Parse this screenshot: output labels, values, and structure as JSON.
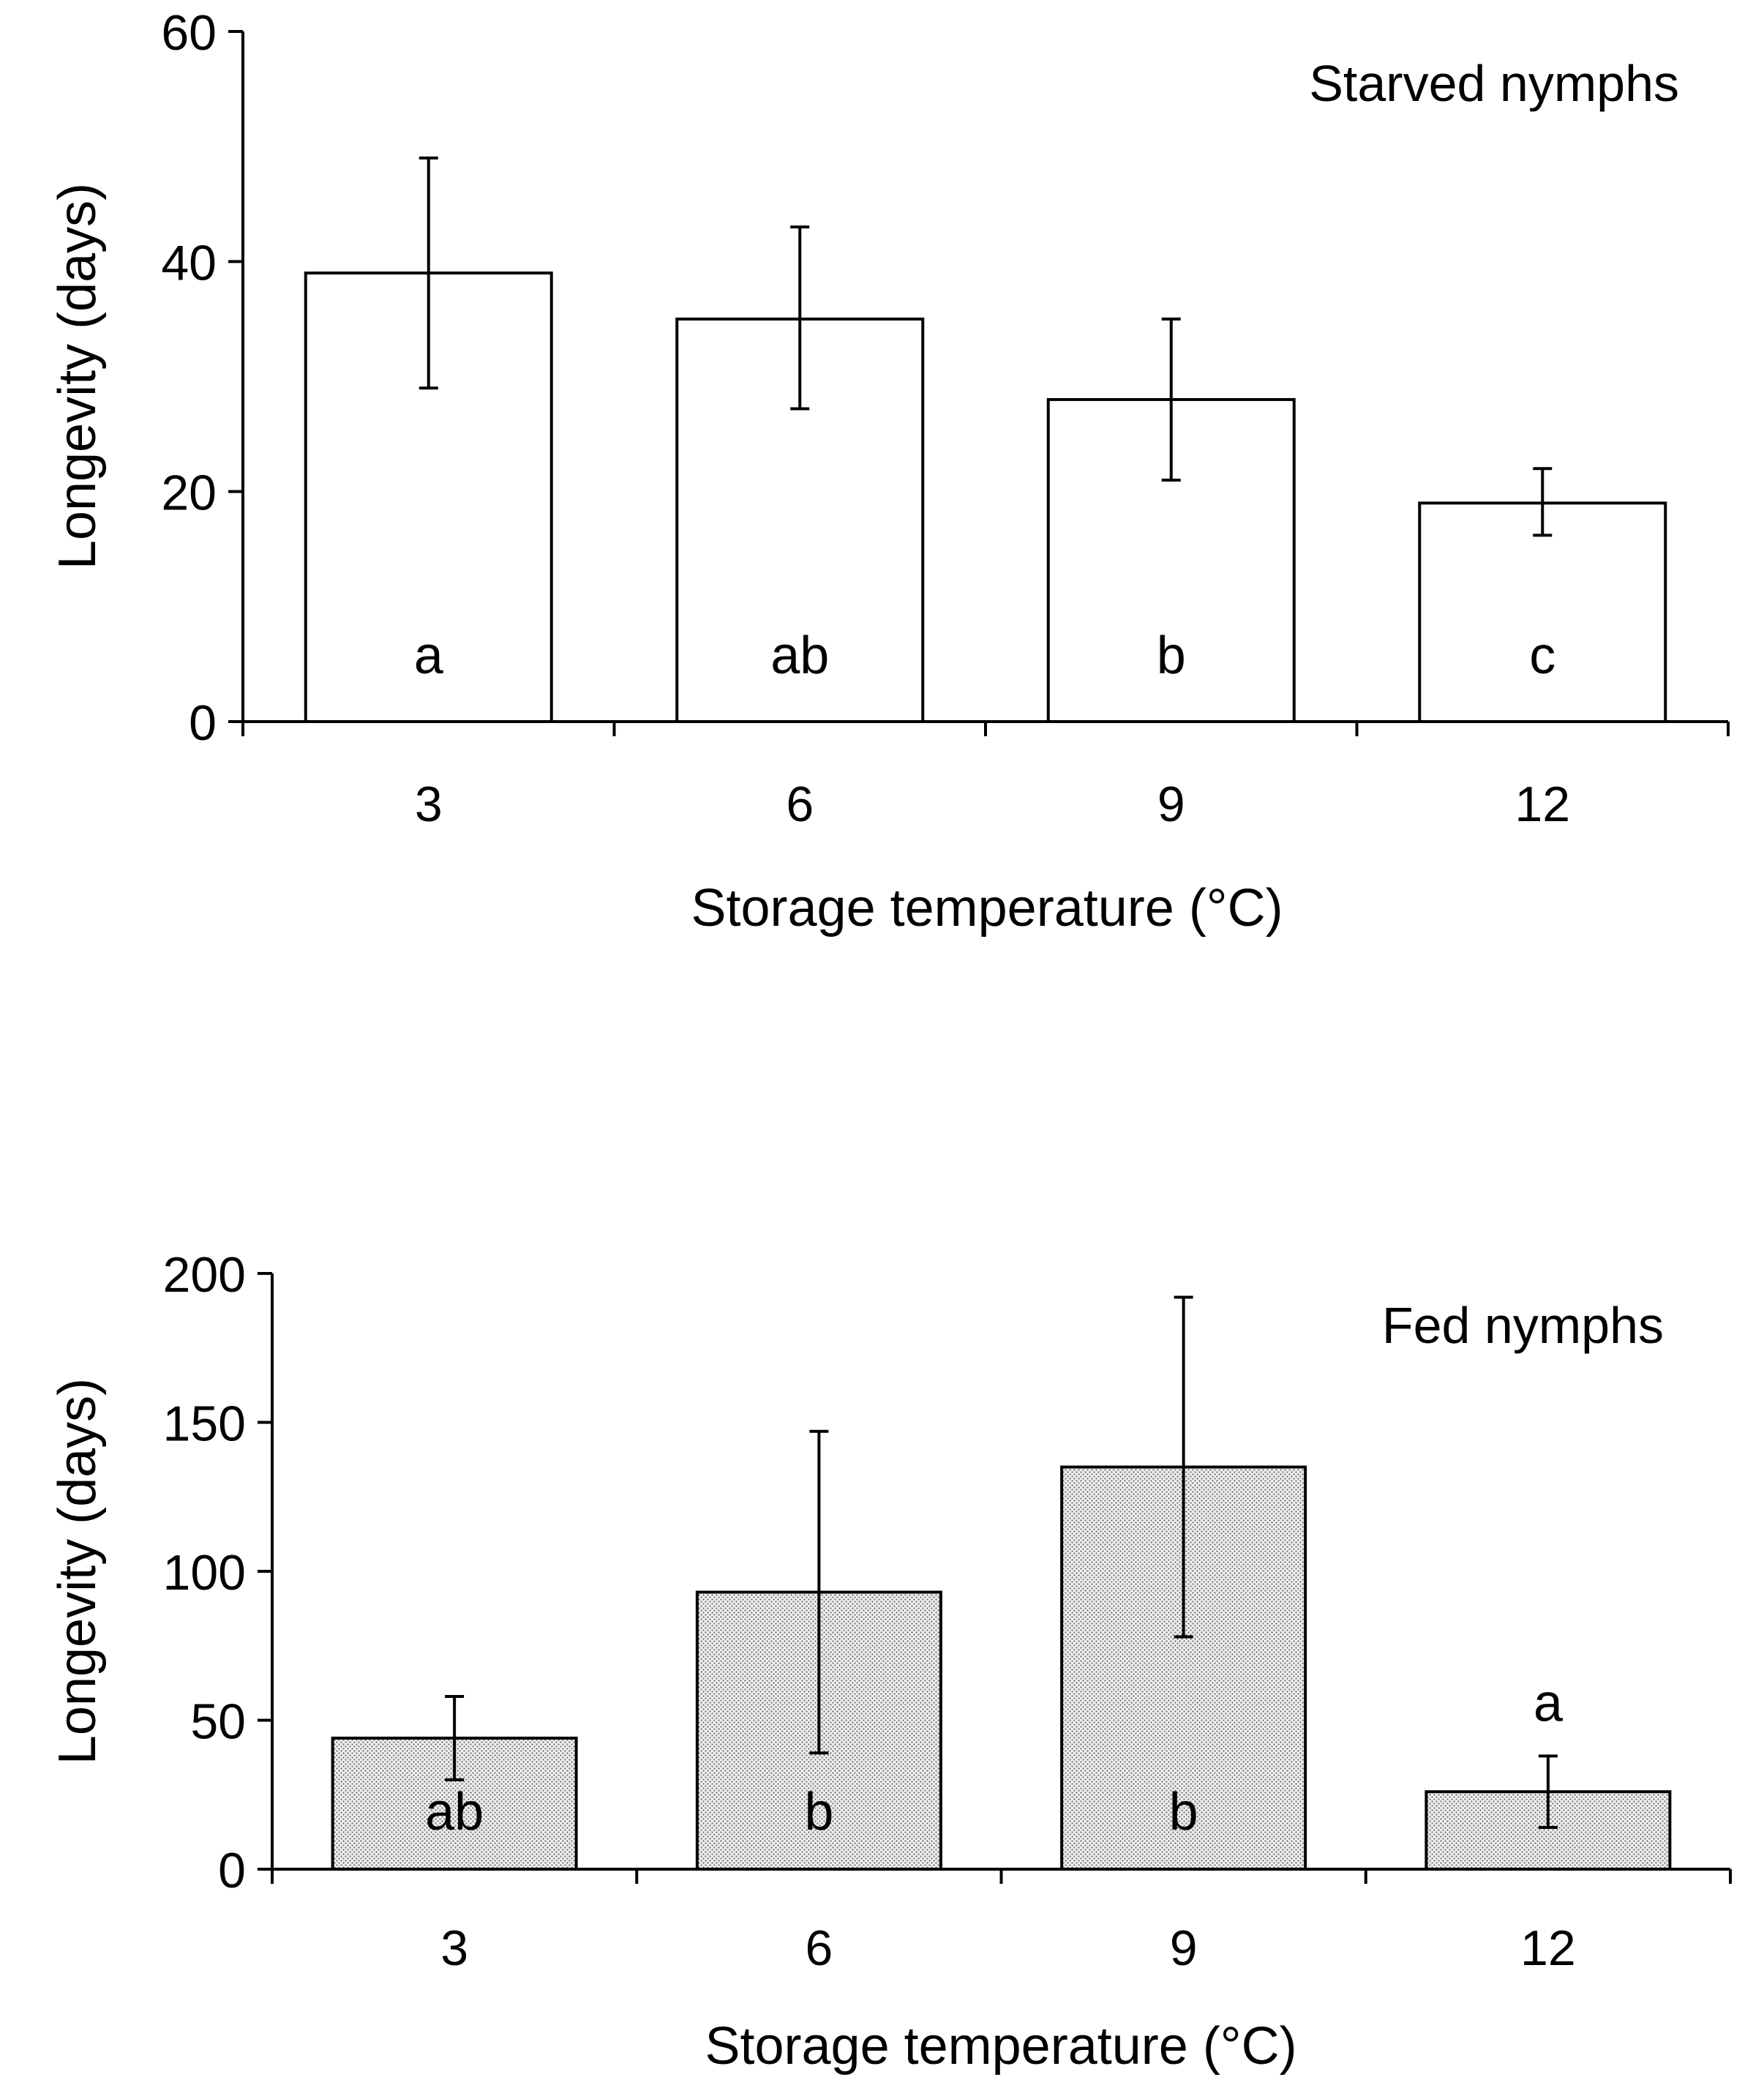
{
  "chart_data": [
    {
      "type": "bar",
      "panel_label": "Starved nymphs",
      "categories": [
        "3",
        "6",
        "9",
        "12"
      ],
      "values": [
        39,
        35,
        28,
        19
      ],
      "error_low": [
        29,
        27.2,
        21,
        16.2
      ],
      "error_high": [
        49,
        43,
        35,
        22
      ],
      "letters": [
        "a",
        "ab",
        "b",
        "c"
      ],
      "letter_position": "inside",
      "xlabel": "Storage temperature (°C)",
      "ylabel": "Longevity (days)",
      "ylim": [
        0,
        60
      ],
      "yticks": [
        "0",
        "20",
        "40",
        "60"
      ],
      "bar_fill": "#ffffff",
      "grid": false
    },
    {
      "type": "bar",
      "panel_label": "Fed nymphs",
      "categories": [
        "3",
        "6",
        "9",
        "12"
      ],
      "values": [
        44,
        93,
        135,
        26
      ],
      "error_low": [
        30,
        39,
        78,
        14
      ],
      "error_high": [
        58,
        147,
        192,
        38
      ],
      "letters": [
        "ab",
        "b",
        "b",
        "a"
      ],
      "letter_position": [
        "inside",
        "inside",
        "inside",
        "above"
      ],
      "xlabel": "Storage temperature (°C)",
      "ylabel": "Longevity (days)",
      "ylim": [
        0,
        200
      ],
      "yticks": [
        "0",
        "50",
        "100",
        "150",
        "200"
      ],
      "bar_fill": "#e4e4e4",
      "grid": false
    }
  ]
}
